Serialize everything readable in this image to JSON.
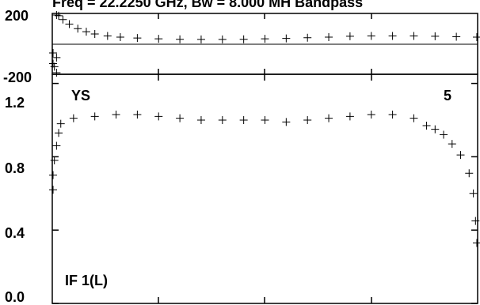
{
  "chart_data": [
    {
      "type": "scatter",
      "role": "phase",
      "title": "Freq = 22.2250 GHz, Bw = 8.000 MH  Bandpass",
      "ytick_labels": [
        "200",
        "-200"
      ],
      "yticks": [
        200,
        -200
      ],
      "ylim": [
        -200,
        200
      ],
      "xlim": [
        0,
        1
      ],
      "marker": "+",
      "color": "#000000",
      "grid": false,
      "points": [
        [
          0.0,
          -60
        ],
        [
          0.0,
          -130
        ],
        [
          0.005,
          -150
        ],
        [
          0.01,
          -190
        ],
        [
          0.01,
          -90
        ],
        [
          0.01,
          195
        ],
        [
          0.015,
          185
        ],
        [
          0.025,
          160
        ],
        [
          0.04,
          130
        ],
        [
          0.06,
          100
        ],
        [
          0.08,
          80
        ],
        [
          0.1,
          65
        ],
        [
          0.13,
          52
        ],
        [
          0.16,
          44
        ],
        [
          0.2,
          38
        ],
        [
          0.25,
          33
        ],
        [
          0.3,
          30
        ],
        [
          0.35,
          29
        ],
        [
          0.4,
          29
        ],
        [
          0.45,
          30
        ],
        [
          0.5,
          33
        ],
        [
          0.55,
          36
        ],
        [
          0.6,
          40
        ],
        [
          0.65,
          44
        ],
        [
          0.7,
          50
        ],
        [
          0.75,
          52
        ],
        [
          0.8,
          52
        ],
        [
          0.85,
          52
        ],
        [
          0.9,
          50
        ],
        [
          0.95,
          47
        ],
        [
          1.0,
          44
        ]
      ]
    },
    {
      "type": "scatter",
      "role": "amplitude",
      "antenna_label": "YS",
      "panel_number": "5",
      "if_label": "IF 1(L)",
      "ytick_labels": [
        "1.2",
        "0.8",
        "0.4",
        "0.0"
      ],
      "yticks": [
        1.2,
        0.8,
        0.4,
        0.0
      ],
      "ylim": [
        0.0,
        1.25
      ],
      "xlim": [
        0,
        1
      ],
      "marker": "+",
      "color": "#000000",
      "grid": false,
      "points": [
        [
          0.0,
          0.62
        ],
        [
          0.0,
          0.7
        ],
        [
          0.005,
          0.78
        ],
        [
          0.01,
          0.86
        ],
        [
          0.015,
          0.93
        ],
        [
          0.02,
          0.98
        ],
        [
          0.05,
          1.01
        ],
        [
          0.1,
          1.02
        ],
        [
          0.15,
          1.03
        ],
        [
          0.2,
          1.03
        ],
        [
          0.25,
          1.02
        ],
        [
          0.3,
          1.01
        ],
        [
          0.35,
          1.0
        ],
        [
          0.4,
          1.0
        ],
        [
          0.45,
          1.0
        ],
        [
          0.5,
          1.0
        ],
        [
          0.55,
          0.99
        ],
        [
          0.6,
          1.0
        ],
        [
          0.65,
          1.01
        ],
        [
          0.7,
          1.02
        ],
        [
          0.75,
          1.03
        ],
        [
          0.8,
          1.03
        ],
        [
          0.85,
          1.01
        ],
        [
          0.88,
          0.97
        ],
        [
          0.9,
          0.95
        ],
        [
          0.92,
          0.92
        ],
        [
          0.94,
          0.87
        ],
        [
          0.96,
          0.81
        ],
        [
          0.98,
          0.71
        ],
        [
          0.99,
          0.6
        ],
        [
          0.995,
          0.45
        ],
        [
          1.0,
          0.33
        ]
      ]
    }
  ]
}
